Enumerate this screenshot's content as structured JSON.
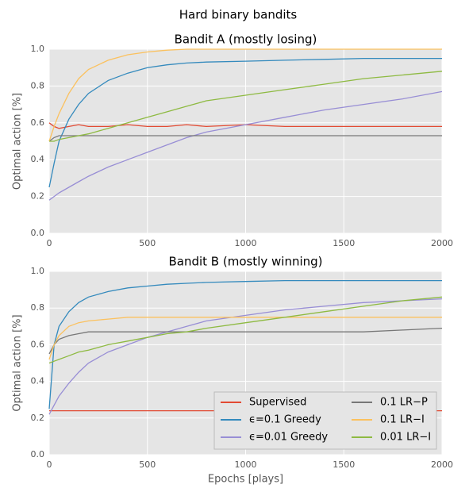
{
  "title": "Hard binary bandits",
  "chart_data": [
    {
      "type": "line",
      "title": "Bandit A (mostly losing)",
      "ylabel": "Optimal action [%]",
      "x": [
        0,
        25,
        50,
        100,
        150,
        200,
        300,
        400,
        500,
        600,
        700,
        800,
        1000,
        1200,
        1400,
        1600,
        1800,
        2000
      ],
      "xlim": [
        0,
        2000
      ],
      "xticks": [
        0,
        500,
        1000,
        1500,
        2000
      ],
      "ylim": [
        0,
        1
      ],
      "yticks": [
        {
          "value": 0,
          "label": "0.0"
        },
        0.2,
        0.4,
        0.6,
        0.8,
        {
          "value": 1,
          "label": "1.0"
        }
      ],
      "grid": true,
      "series": [
        {
          "name": "Supervised",
          "color": "#E24A33",
          "values": [
            0.6,
            0.58,
            0.57,
            0.58,
            0.59,
            0.58,
            0.58,
            0.59,
            0.58,
            0.58,
            0.59,
            0.58,
            0.59,
            0.58,
            0.58,
            0.58,
            0.58,
            0.58
          ]
        },
        {
          "name": "ϵ=0.1 Greedy",
          "color": "#348ABD",
          "values": [
            0.25,
            0.38,
            0.5,
            0.62,
            0.7,
            0.76,
            0.83,
            0.87,
            0.9,
            0.915,
            0.925,
            0.93,
            0.935,
            0.94,
            0.945,
            0.95,
            0.95,
            0.95
          ]
        },
        {
          "name": "ϵ=0.01 Greedy",
          "color": "#988ED5",
          "values": [
            0.18,
            0.2,
            0.22,
            0.25,
            0.28,
            0.31,
            0.36,
            0.4,
            0.44,
            0.48,
            0.52,
            0.55,
            0.59,
            0.63,
            0.67,
            0.7,
            0.73,
            0.77
          ]
        },
        {
          "name": "0.1 LR−P",
          "color": "#777777",
          "values": [
            0.5,
            0.52,
            0.53,
            0.53,
            0.53,
            0.53,
            0.53,
            0.53,
            0.53,
            0.53,
            0.53,
            0.53,
            0.53,
            0.53,
            0.53,
            0.53,
            0.53,
            0.53
          ]
        },
        {
          "name": "0.1 LR−I",
          "color": "#FBC15E",
          "values": [
            0.5,
            0.58,
            0.65,
            0.76,
            0.84,
            0.89,
            0.94,
            0.97,
            0.985,
            0.995,
            1,
            1,
            1,
            1,
            1,
            1,
            1,
            1
          ]
        },
        {
          "name": "0.01 LR−I",
          "color": "#8EBA42",
          "values": [
            0.5,
            0.5,
            0.51,
            0.52,
            0.53,
            0.54,
            0.57,
            0.6,
            0.63,
            0.66,
            0.69,
            0.72,
            0.75,
            0.78,
            0.81,
            0.84,
            0.86,
            0.88
          ]
        }
      ]
    },
    {
      "type": "line",
      "title": "Bandit B (mostly winning)",
      "ylabel": "Optimal action [%]",
      "xlabel": "Epochs [plays]",
      "x": [
        0,
        25,
        50,
        100,
        150,
        200,
        300,
        400,
        500,
        600,
        700,
        800,
        1000,
        1200,
        1400,
        1600,
        1800,
        2000
      ],
      "xlim": [
        0,
        2000
      ],
      "xticks": [
        0,
        500,
        1000,
        1500,
        2000
      ],
      "ylim": [
        0,
        1
      ],
      "yticks": [
        {
          "value": 0,
          "label": "0.0"
        },
        0.2,
        0.4,
        0.6,
        0.8,
        {
          "value": 1,
          "label": "1.0"
        }
      ],
      "grid": true,
      "legend": "lower right",
      "series": [
        {
          "name": "Supervised",
          "color": "#E24A33",
          "values": [
            0.24,
            0.24,
            0.24,
            0.24,
            0.24,
            0.24,
            0.24,
            0.24,
            0.24,
            0.24,
            0.24,
            0.24,
            0.24,
            0.24,
            0.24,
            0.24,
            0.24,
            0.24
          ]
        },
        {
          "name": "ϵ=0.1 Greedy",
          "color": "#348ABD",
          "values": [
            0.25,
            0.6,
            0.7,
            0.78,
            0.83,
            0.86,
            0.89,
            0.91,
            0.92,
            0.93,
            0.935,
            0.94,
            0.945,
            0.95,
            0.95,
            0.95,
            0.95,
            0.95
          ]
        },
        {
          "name": "ϵ=0.01 Greedy",
          "color": "#988ED5",
          "values": [
            0.22,
            0.27,
            0.32,
            0.39,
            0.45,
            0.5,
            0.56,
            0.6,
            0.64,
            0.67,
            0.7,
            0.73,
            0.76,
            0.79,
            0.81,
            0.83,
            0.84,
            0.85
          ]
        },
        {
          "name": "0.1 LR−P",
          "color": "#777777",
          "values": [
            0.55,
            0.6,
            0.63,
            0.65,
            0.66,
            0.67,
            0.67,
            0.67,
            0.67,
            0.67,
            0.67,
            0.67,
            0.67,
            0.67,
            0.67,
            0.67,
            0.68,
            0.69
          ]
        },
        {
          "name": "0.1 LR−I",
          "color": "#FBC15E",
          "values": [
            0.52,
            0.6,
            0.65,
            0.7,
            0.72,
            0.73,
            0.74,
            0.75,
            0.75,
            0.75,
            0.75,
            0.75,
            0.75,
            0.75,
            0.75,
            0.75,
            0.75,
            0.75
          ]
        },
        {
          "name": "0.01 LR−I",
          "color": "#8EBA42",
          "values": [
            0.5,
            0.51,
            0.52,
            0.54,
            0.56,
            0.57,
            0.6,
            0.62,
            0.64,
            0.66,
            0.67,
            0.69,
            0.72,
            0.75,
            0.78,
            0.81,
            0.84,
            0.86
          ]
        }
      ]
    }
  ]
}
